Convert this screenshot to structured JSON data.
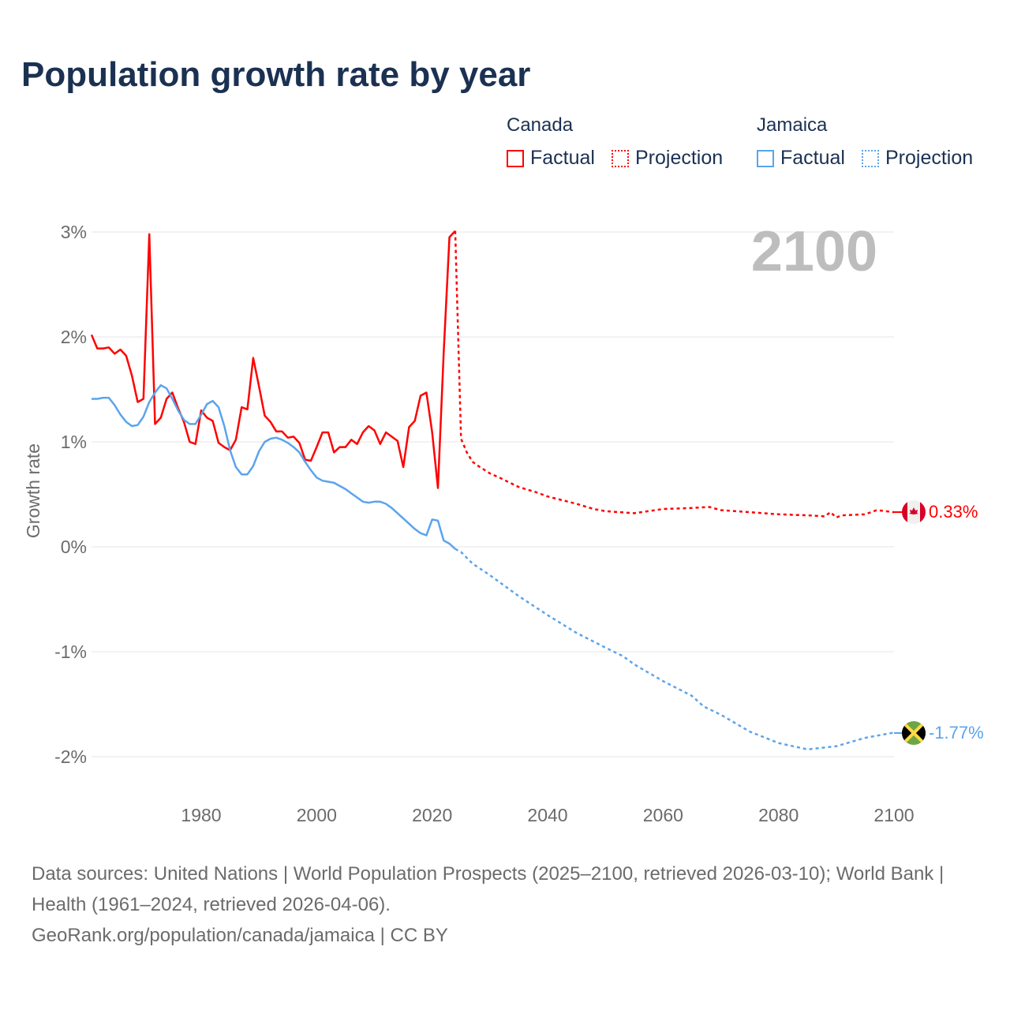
{
  "title": "Population growth rate by year",
  "legend": {
    "groups": [
      {
        "name": "Canada",
        "factual": "Factual",
        "projection": "Projection",
        "color": "#ff0000"
      },
      {
        "name": "Jamaica",
        "factual": "Factual",
        "projection": "Projection",
        "color": "#5ba4ec"
      }
    ]
  },
  "year_display": "2100",
  "end_labels": {
    "canada": "0.33%",
    "jamaica": "-1.77%"
  },
  "footer": {
    "sources": "Data sources: United Nations | World Population Prospects (2025–2100, retrieved 2026-03-10); World Bank | Health (1961–2024, retrieved 2026-04-06).",
    "credit": "GeoRank.org/population/canada/jamaica | CC BY"
  },
  "chart_data": {
    "type": "line",
    "title": "Population growth rate by year",
    "xlabel": "",
    "ylabel": "Growth rate",
    "xlim": [
      1961,
      2100
    ],
    "ylim": [
      -2.5,
      3.2
    ],
    "x_ticks": [
      1980,
      2000,
      2020,
      2040,
      2060,
      2080,
      2100
    ],
    "x_tick_labels": [
      "1980",
      "2000",
      "2020",
      "2040",
      "2060",
      "2080",
      "2100"
    ],
    "y_ticks": [
      3,
      2,
      1,
      0,
      -1,
      -2
    ],
    "y_tick_labels": [
      "3%",
      "2%",
      "1%",
      "0%",
      "-1%",
      "-2%"
    ],
    "grid": true,
    "legend_position": "top-right",
    "series": [
      {
        "name": "Canada Factual",
        "color": "#ff0000",
        "style": "solid",
        "x": [
          1961,
          1962,
          1963,
          1964,
          1965,
          1966,
          1967,
          1968,
          1969,
          1970,
          1971,
          1972,
          1973,
          1974,
          1975,
          1976,
          1977,
          1978,
          1979,
          1980,
          1981,
          1982,
          1983,
          1984,
          1985,
          1986,
          1987,
          1988,
          1989,
          1990,
          1991,
          1992,
          1993,
          1994,
          1995,
          1996,
          1997,
          1998,
          1999,
          2000,
          2001,
          2002,
          2003,
          2004,
          2005,
          2006,
          2007,
          2008,
          2009,
          2010,
          2011,
          2012,
          2013,
          2014,
          2015,
          2016,
          2017,
          2018,
          2019,
          2020,
          2021,
          2022,
          2023,
          2024
        ],
        "y": [
          2.02,
          1.89,
          1.89,
          1.9,
          1.84,
          1.88,
          1.82,
          1.63,
          1.38,
          1.41,
          2.98,
          1.17,
          1.23,
          1.41,
          1.47,
          1.32,
          1.19,
          1.0,
          0.98,
          1.3,
          1.23,
          1.2,
          0.99,
          0.95,
          0.92,
          1.02,
          1.33,
          1.31,
          1.8,
          1.53,
          1.25,
          1.19,
          1.1,
          1.1,
          1.04,
          1.05,
          0.99,
          0.83,
          0.82,
          0.95,
          1.09,
          1.09,
          0.9,
          0.95,
          0.95,
          1.02,
          0.98,
          1.09,
          1.15,
          1.11,
          0.98,
          1.09,
          1.05,
          1.01,
          0.76,
          1.14,
          1.2,
          1.44,
          1.47,
          1.09,
          0.56,
          1.85,
          2.95,
          3.01
        ]
      },
      {
        "name": "Canada Projection",
        "color": "#ff0000",
        "style": "dotted",
        "x": [
          2024,
          2025,
          2026,
          2027,
          2028,
          2030,
          2032,
          2035,
          2038,
          2040,
          2045,
          2048,
          2050,
          2055,
          2060,
          2065,
          2068,
          2070,
          2075,
          2080,
          2085,
          2088,
          2089,
          2090,
          2091,
          2095,
          2097,
          2100
        ],
        "y": [
          3.01,
          1.03,
          0.9,
          0.81,
          0.77,
          0.7,
          0.65,
          0.57,
          0.52,
          0.48,
          0.41,
          0.36,
          0.34,
          0.32,
          0.36,
          0.37,
          0.38,
          0.35,
          0.33,
          0.31,
          0.3,
          0.29,
          0.33,
          0.28,
          0.3,
          0.31,
          0.35,
          0.33
        ]
      },
      {
        "name": "Jamaica Factual",
        "color": "#5ba4ec",
        "style": "solid",
        "x": [
          1961,
          1962,
          1963,
          1964,
          1965,
          1966,
          1967,
          1968,
          1969,
          1970,
          1971,
          1972,
          1973,
          1974,
          1975,
          1976,
          1977,
          1978,
          1979,
          1980,
          1981,
          1982,
          1983,
          1984,
          1985,
          1986,
          1987,
          1988,
          1989,
          1990,
          1991,
          1992,
          1993,
          1994,
          1995,
          1996,
          1997,
          1998,
          1999,
          2000,
          2001,
          2002,
          2003,
          2004,
          2005,
          2006,
          2007,
          2008,
          2009,
          2010,
          2011,
          2012,
          2013,
          2014,
          2015,
          2016,
          2017,
          2018,
          2019,
          2020,
          2021,
          2022,
          2023,
          2024
        ],
        "y": [
          1.41,
          1.41,
          1.42,
          1.42,
          1.35,
          1.26,
          1.19,
          1.15,
          1.16,
          1.24,
          1.38,
          1.47,
          1.54,
          1.51,
          1.41,
          1.3,
          1.21,
          1.17,
          1.17,
          1.26,
          1.36,
          1.39,
          1.33,
          1.15,
          0.92,
          0.76,
          0.69,
          0.69,
          0.77,
          0.91,
          1.0,
          1.03,
          1.04,
          1.02,
          0.99,
          0.95,
          0.9,
          0.81,
          0.73,
          0.66,
          0.63,
          0.62,
          0.61,
          0.58,
          0.55,
          0.51,
          0.47,
          0.43,
          0.42,
          0.43,
          0.43,
          0.41,
          0.37,
          0.32,
          0.27,
          0.22,
          0.17,
          0.13,
          0.11,
          0.26,
          0.25,
          0.06,
          0.03,
          -0.02
        ]
      },
      {
        "name": "Jamaica Projection",
        "color": "#5ba4ec",
        "style": "dotted",
        "x": [
          2024,
          2025,
          2027,
          2030,
          2035,
          2040,
          2045,
          2050,
          2053,
          2055,
          2060,
          2065,
          2067,
          2070,
          2075,
          2080,
          2085,
          2090,
          2095,
          2100
        ],
        "y": [
          -0.02,
          -0.05,
          -0.16,
          -0.27,
          -0.47,
          -0.65,
          -0.82,
          -0.96,
          -1.04,
          -1.12,
          -1.28,
          -1.42,
          -1.52,
          -1.6,
          -1.76,
          -1.87,
          -1.93,
          -1.9,
          -1.82,
          -1.77
        ]
      }
    ]
  }
}
